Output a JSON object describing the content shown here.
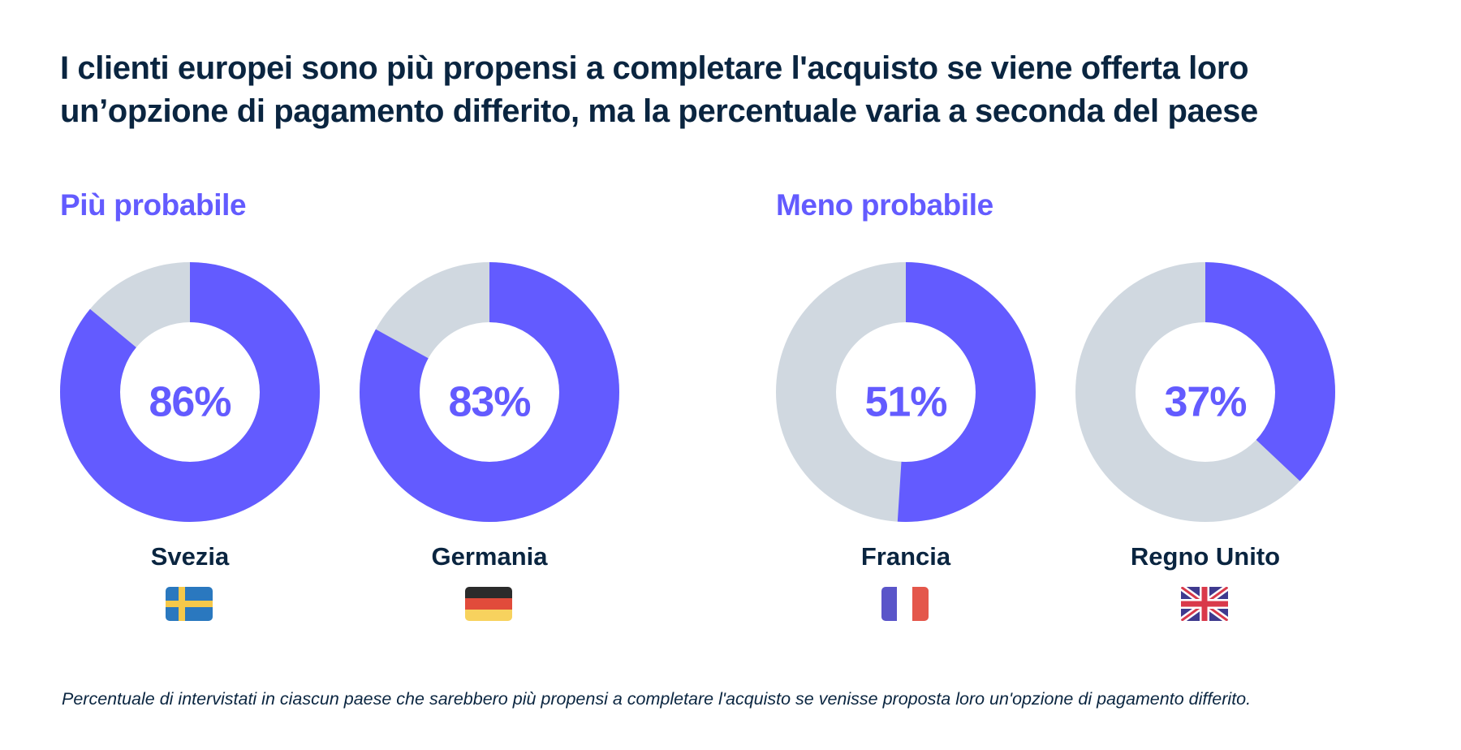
{
  "title": "I clienti europei sono più propensi a completare l'acquisto se viene offerta loro un’opzione di pagamento differito, ma la percentuale varia a seconda del paese",
  "groups": {
    "more": "Più probabile",
    "less": "Meno probabile"
  },
  "colors": {
    "accent": "#635bff",
    "remainder": "#d0d8e0",
    "text": "#0a2540"
  },
  "chart_data": {
    "type": "pie",
    "variant": "donut",
    "unit": "%",
    "title": "I clienti europei sono più propensi a completare l'acquisto se viene offerta loro un’opzione di pagamento differito, ma la percentuale varia a seconda del paese",
    "categories": [
      "Svezia",
      "Germania",
      "Francia",
      "Regno Unito"
    ],
    "values": [
      86,
      83,
      51,
      37
    ],
    "labels": [
      "86%",
      "83%",
      "51%",
      "37%"
    ],
    "groups": [
      "Più probabile",
      "Più probabile",
      "Meno probabile",
      "Meno probabile"
    ]
  },
  "countries": [
    {
      "name": "Svezia",
      "value": 86,
      "label": "86%",
      "flag": "sweden-flag-icon"
    },
    {
      "name": "Germania",
      "value": 83,
      "label": "83%",
      "flag": "germany-flag-icon"
    },
    {
      "name": "Francia",
      "value": 51,
      "label": "51%",
      "flag": "france-flag-icon"
    },
    {
      "name": "Regno Unito",
      "value": 37,
      "label": "37%",
      "flag": "uk-flag-icon"
    }
  ],
  "footnote": "Percentuale di intervistati in ciascun paese che sarebbero più propensi a completare l'acquisto se venisse proposta loro un'opzione di pagamento differito."
}
